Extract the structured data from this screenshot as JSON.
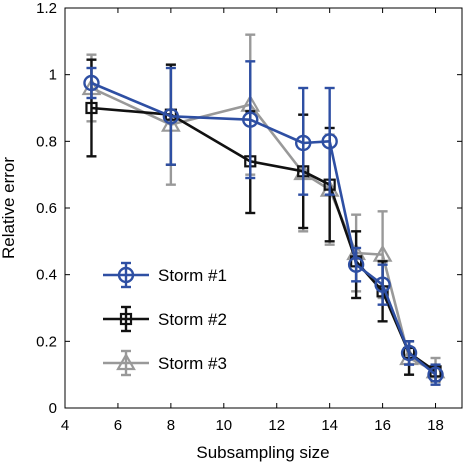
{
  "chart_data": {
    "type": "line",
    "xlabel": "Subsampling size",
    "ylabel": "Relative error",
    "xlim": [
      4,
      19
    ],
    "ylim": [
      0,
      1.2
    ],
    "xticks": [
      "4",
      "6",
      "8",
      "10",
      "12",
      "14",
      "16",
      "18"
    ],
    "yticks": [
      "0",
      "0.2",
      "0.4",
      "0.6",
      "0.8",
      "1",
      "1.2"
    ],
    "legend_position": "bottom-left",
    "series": [
      {
        "name": "Storm #1",
        "color": "#2e4fa3",
        "marker": "circle",
        "x": [
          5,
          8,
          11,
          13,
          14,
          15,
          16,
          17,
          18
        ],
        "y": [
          0.975,
          0.875,
          0.865,
          0.795,
          0.8,
          0.43,
          0.37,
          0.165,
          0.1
        ],
        "err_low": [
          0.93,
          0.73,
          0.69,
          0.64,
          0.64,
          0.38,
          0.31,
          0.13,
          0.07
        ],
        "err_high": [
          1.02,
          1.02,
          1.04,
          0.96,
          0.96,
          0.48,
          0.43,
          0.2,
          0.13
        ]
      },
      {
        "name": "Storm #2",
        "color": "#111111",
        "marker": "square",
        "x": [
          5,
          8,
          11,
          13,
          14,
          15,
          16,
          17,
          18
        ],
        "y": [
          0.9,
          0.88,
          0.74,
          0.71,
          0.67,
          0.44,
          0.35,
          0.165,
          0.11
        ],
        "err_low": [
          0.755,
          0.73,
          0.585,
          0.54,
          0.5,
          0.33,
          0.26,
          0.1,
          0.08
        ],
        "err_high": [
          1.045,
          1.03,
          0.89,
          0.88,
          0.84,
          0.53,
          0.44,
          0.2,
          0.13
        ]
      },
      {
        "name": "Storm #3",
        "color": "#999999",
        "marker": "triangle",
        "x": [
          5,
          8,
          11,
          13,
          14,
          15,
          16,
          17,
          18
        ],
        "y": [
          0.96,
          0.85,
          0.91,
          0.705,
          0.655,
          0.465,
          0.46,
          0.15,
          0.11
        ],
        "err_low": [
          0.86,
          0.67,
          0.7,
          0.53,
          0.49,
          0.35,
          0.33,
          0.1,
          0.07
        ],
        "err_high": [
          1.06,
          1.03,
          1.12,
          0.88,
          0.82,
          0.58,
          0.59,
          0.2,
          0.15
        ]
      }
    ]
  }
}
